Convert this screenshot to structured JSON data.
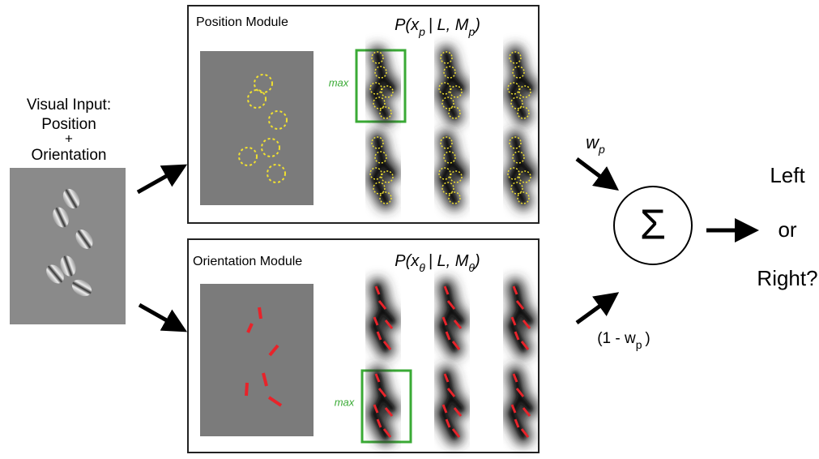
{
  "input": {
    "lines": [
      "Visual Input:",
      "Position",
      "+",
      "Orientation"
    ]
  },
  "position_module": {
    "title": "Position Module",
    "formula": [
      "P(x",
      "p",
      "| L, M",
      "p",
      ")"
    ],
    "max_label": "max"
  },
  "orientation_module": {
    "title": "Orientation Module",
    "formula": [
      "P(x",
      "θ",
      "| L, M",
      "θ",
      ")"
    ],
    "max_label": "max"
  },
  "weights": {
    "top": [
      "w",
      "p"
    ],
    "bottom": [
      "(1 - w",
      "p",
      ")"
    ]
  },
  "sum_symbol": "Σ",
  "output": {
    "lines": [
      "Left",
      "or",
      "Right?"
    ]
  }
}
